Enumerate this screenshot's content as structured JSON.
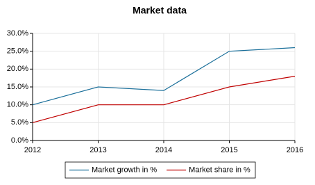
{
  "chart_data": {
    "type": "line",
    "title": "Market data",
    "x": [
      2012,
      2013,
      2014,
      2015,
      2016
    ],
    "xlim": [
      2012,
      2016
    ],
    "xticks": [
      2012,
      2013,
      2014,
      2015,
      2016
    ],
    "ylim": [
      0,
      30
    ],
    "yticks": [
      {
        "value": 0,
        "label": "0.0%"
      },
      {
        "value": 5,
        "label": "5.0%"
      },
      {
        "value": 10,
        "label": "10.0%"
      },
      {
        "value": 15,
        "label": "15.0%"
      },
      {
        "value": 20,
        "label": "20.0%"
      },
      {
        "value": 25,
        "label": "25.0%"
      },
      {
        "value": 30,
        "label": "30.0%"
      }
    ],
    "grid": true,
    "legend": "bottom",
    "series": [
      {
        "name": "Market growth in %",
        "color": "#1a6f9a",
        "values": [
          10,
          15,
          14,
          25,
          26
        ]
      },
      {
        "name": "Market share in %",
        "color": "#c00000",
        "values": [
          5,
          10,
          10,
          15,
          18
        ]
      }
    ]
  }
}
